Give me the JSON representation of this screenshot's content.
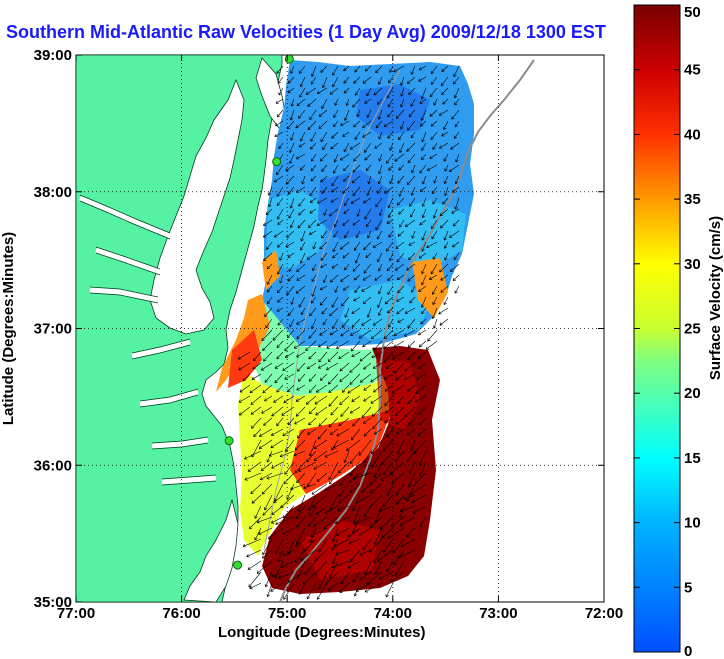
{
  "title": "Southern Mid-Atlantic Raw Velocities (1 Day Avg) 2009/12/18 1300 EST",
  "xlabel": "Longitude (Degrees:Minutes)",
  "ylabel": "Latitude (Degrees:Minutes)",
  "colorbar": {
    "label": "Surface Velocity (cm/s)",
    "range": [
      0,
      50
    ],
    "ticks": [
      "0",
      "5",
      "10",
      "15",
      "20",
      "25",
      "30",
      "35",
      "40",
      "45",
      "50"
    ]
  },
  "axes": {
    "xticks": [
      "77:00",
      "76:00",
      "75:00",
      "74:00",
      "73:00",
      "72:00"
    ],
    "yticks": [
      "35:00",
      "36:00",
      "37:00",
      "38:00",
      "39:00"
    ],
    "xlim": [
      -77,
      -72
    ],
    "ylim": [
      35,
      39
    ],
    "grid": "dotted"
  },
  "colors": {
    "land": "#55f2a4",
    "title": "#1a1aff",
    "station": "#33dd33"
  },
  "chart_data": {
    "type": "heatmap",
    "title": "Southern Mid-Atlantic Raw Velocities (1 Day Avg) 2009/12/18 1300 EST",
    "xlabel": "Longitude (Degrees:Minutes)",
    "ylabel": "Latitude (Degrees:Minutes)",
    "colorbar_label": "Surface Velocity (cm/s)",
    "clim": [
      0,
      50
    ],
    "stations": [
      {
        "lon": -74.98,
        "lat": 38.97
      },
      {
        "lon": -75.1,
        "lat": 38.22
      },
      {
        "lon": -75.55,
        "lat": 36.18
      },
      {
        "lon": -75.47,
        "lat": 35.27
      }
    ]
  }
}
